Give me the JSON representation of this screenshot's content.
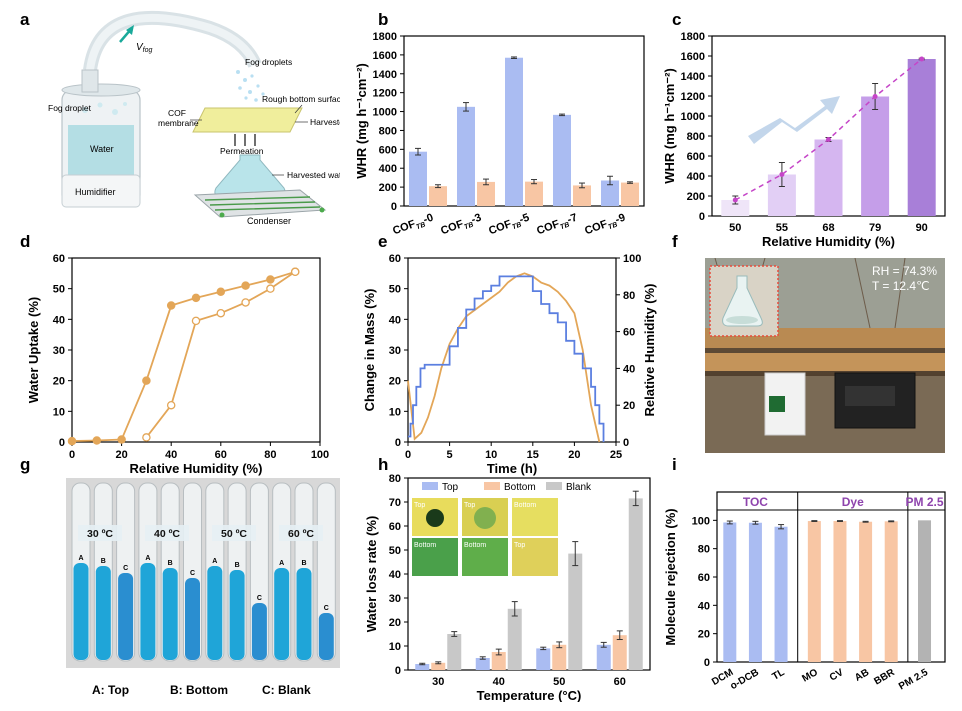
{
  "panels": {
    "a": "a",
    "b": "b",
    "c": "c",
    "d": "d",
    "e": "e",
    "f": "f",
    "g": "g",
    "h": "h",
    "i": "i"
  },
  "schematic": {
    "vfog": "V",
    "vfog_sub": "fog",
    "fog_droplets": "Fog droplets",
    "fog_droplet": "Fog droplet",
    "rough_bottom": "Rough bottom surface",
    "cof_membrane": "COF\nmembrane",
    "harvested_fog": "Harvested fog",
    "permeation": "Permeation",
    "harvested_water": "Harvested water",
    "water": "Water",
    "humidifier": "Humidifier",
    "condenser": "Condenser"
  },
  "photo_f": {
    "rh": "RH = 74.3%",
    "t": "T = 12.4℃"
  },
  "photo_g": {
    "temps": [
      "30 ºC",
      "40 ºC",
      "50 ºC",
      "60 ºC"
    ],
    "tube_labels": [
      "A",
      "B",
      "C",
      "A",
      "B",
      "C",
      "A",
      "B",
      "C",
      "A",
      "B",
      "C"
    ],
    "caption_a": "A: Top",
    "caption_b": "B: Bottom",
    "caption_c": "C: Blank"
  },
  "inset_h": {
    "labels": [
      "Top",
      "Top",
      "Bottom",
      "Bottom",
      "Bottom",
      "Top"
    ]
  },
  "chart_data": [
    {
      "panel": "b",
      "type": "bar",
      "categories": [
        "COF_TB-0",
        "COF_TB-3",
        "COF_TB-5",
        "COF_TB-7",
        "COF_TB-9"
      ],
      "category_main": "COF",
      "category_sub": [
        "TB",
        "TB",
        "TB",
        "TB",
        "TB"
      ],
      "category_suffix": [
        "-0",
        "-3",
        "-5",
        "-7",
        "-9"
      ],
      "series": [
        {
          "values": [
            575,
            1050,
            1570,
            965,
            270
          ],
          "errors": [
            35,
            45,
            8,
            8,
            45
          ],
          "color": "#aabcf2"
        },
        {
          "values": [
            210,
            255,
            258,
            218,
            248
          ],
          "errors": [
            15,
            30,
            22,
            25,
            8
          ],
          "color": "#f8c6a4"
        }
      ],
      "ylabel": "WHR (mg h⁻¹cm⁻²)",
      "ylim": [
        0,
        1800
      ],
      "yticks": [
        0,
        200,
        400,
        600,
        800,
        1000,
        1200,
        1400,
        1600,
        1800
      ]
    },
    {
      "panel": "c",
      "type": "bar",
      "categories": [
        "50",
        "55",
        "68",
        "79",
        "90"
      ],
      "values": [
        160,
        415,
        765,
        1195,
        1570
      ],
      "errors": [
        40,
        120,
        20,
        130,
        8
      ],
      "colors": [
        "#efe5f8",
        "#e2cff5",
        "#d5b6f0",
        "#c59ee9",
        "#a87fd8"
      ],
      "trend": "dashed",
      "trend_color": "#c545c8",
      "xlabel": "Relative Humidity (%)",
      "ylabel": "WHR (mg h⁻¹cm⁻²)",
      "ylim": [
        0,
        1800
      ],
      "yticks": [
        0,
        200,
        400,
        600,
        800,
        1000,
        1200,
        1400,
        1600,
        1800
      ]
    },
    {
      "panel": "d",
      "type": "line",
      "series": [
        {
          "name": "adsorption",
          "x": [
            0,
            10,
            20,
            30,
            40,
            50,
            60,
            70,
            80,
            90
          ],
          "y": [
            0.3,
            0.5,
            0.8,
            20,
            44.5,
            47,
            49,
            51,
            53,
            55.5
          ],
          "marker": "filled"
        },
        {
          "name": "desorption",
          "x": [
            30,
            40,
            50,
            60,
            70,
            80,
            90
          ],
          "y": [
            1.5,
            12,
            39.5,
            42,
            45.5,
            50,
            55.5
          ],
          "marker": "open"
        }
      ],
      "color": "#e3a658",
      "xlabel": "Relative Humidity (%)",
      "ylabel": "Water Uptake (%)",
      "xlim": [
        0,
        100
      ],
      "ylim": [
        0,
        60
      ],
      "xticks": [
        0,
        20,
        40,
        60,
        80,
        100
      ],
      "yticks": [
        0,
        10,
        20,
        30,
        40,
        50,
        60
      ]
    },
    {
      "panel": "e",
      "type": "line",
      "series": [
        {
          "name": "Change in Mass",
          "axis": "left",
          "color": "#e3a658",
          "x": [
            0,
            0.8,
            1.6,
            2.4,
            3.2,
            4,
            5,
            6,
            7,
            8,
            9,
            10,
            11,
            12,
            13,
            14,
            15,
            16,
            17,
            18,
            19,
            20,
            21,
            22,
            23
          ],
          "y": [
            20,
            1,
            3,
            8,
            15,
            24,
            32,
            37,
            41,
            43,
            45,
            47,
            49,
            52,
            54,
            55,
            54,
            52,
            51,
            49,
            46,
            42,
            30,
            12,
            0
          ]
        },
        {
          "name": "Relative Humidity",
          "axis": "right",
          "color": "#5b7fe0",
          "step": true,
          "x": [
            0,
            0.3,
            0.6,
            1,
            1.5,
            2,
            5,
            6,
            7,
            8,
            9,
            10,
            11,
            12,
            15,
            16,
            17,
            18,
            19,
            20,
            21,
            22,
            22.5,
            23,
            23.5
          ],
          "y": [
            3,
            10,
            20,
            30,
            40,
            42,
            52,
            62,
            72,
            78,
            82,
            85,
            90,
            90,
            82,
            75,
            70,
            65,
            55,
            48,
            40,
            30,
            20,
            10,
            0
          ]
        }
      ],
      "xlabel": "Time (h)",
      "ylabel": "Change in Mass (%)",
      "ylabel_right": "Relative Humidity (%)",
      "xlim": [
        0,
        25
      ],
      "ylim": [
        0,
        60
      ],
      "ylim_right": [
        0,
        100
      ],
      "xticks": [
        0,
        5,
        10,
        15,
        20,
        25
      ],
      "yticks": [
        0,
        10,
        20,
        30,
        40,
        50,
        60
      ],
      "yticks_right": [
        0,
        20,
        40,
        60,
        80,
        100
      ]
    },
    {
      "panel": "h",
      "type": "bar",
      "categories": [
        "30",
        "40",
        "50",
        "60"
      ],
      "series": [
        {
          "name": "Top",
          "values": [
            2.5,
            5,
            9,
            10.5
          ],
          "errors": [
            0.3,
            0.5,
            0.5,
            1
          ],
          "color": "#aabcf2"
        },
        {
          "name": "Bottom",
          "values": [
            3,
            7.5,
            10.5,
            14.5
          ],
          "errors": [
            0.4,
            1.2,
            1.2,
            1.8
          ],
          "color": "#f8c6a4"
        },
        {
          "name": "Blank",
          "values": [
            15,
            25.5,
            48.5,
            71.5
          ],
          "errors": [
            1,
            3,
            5,
            3
          ],
          "color": "#c8c8c8"
        }
      ],
      "xlabel": "Temperature (°C)",
      "ylabel": "Water loss rate (%)",
      "ylim": [
        0,
        80
      ],
      "yticks": [
        0,
        10,
        20,
        30,
        40,
        50,
        60,
        70,
        80
      ],
      "legend": "top"
    },
    {
      "panel": "i",
      "type": "bar",
      "groups": [
        {
          "name": "TOC",
          "color": "#aabcf2",
          "categories": [
            "DCM",
            "o-DCB",
            "TL"
          ],
          "values": [
            98.5,
            98.3,
            95.5
          ],
          "errors": [
            1,
            1,
            1.5
          ]
        },
        {
          "name": "Dye",
          "color": "#f8c6a4",
          "categories": [
            "MO",
            "CV",
            "AB",
            "BBR"
          ],
          "values": [
            99.5,
            99.5,
            99,
            99.3
          ],
          "errors": [
            0.3,
            0.3,
            0.3,
            0.3
          ]
        },
        {
          "name": "PM 2.5",
          "color": "#b3b3b3",
          "categories": [
            "PM 2.5"
          ],
          "values": [
            100
          ],
          "errors": [
            0
          ]
        }
      ],
      "group_label_color": "#8e44ad",
      "ylabel": "Molecule rejection (%)",
      "ylim": [
        0,
        120
      ],
      "yticks": [
        0,
        20,
        40,
        60,
        80,
        100
      ]
    }
  ]
}
